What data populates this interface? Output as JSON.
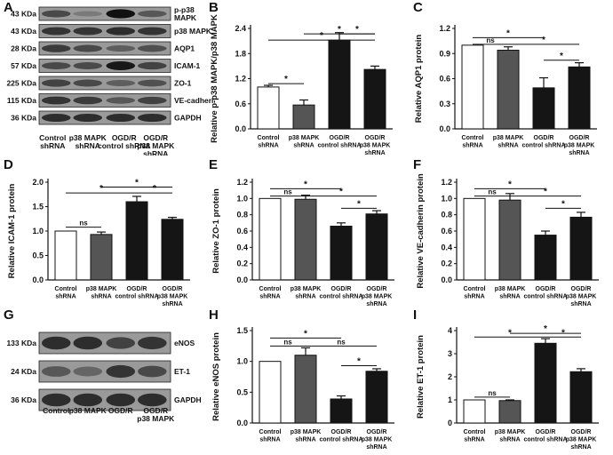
{
  "panels": {
    "A": {
      "letter": "A",
      "kda": [
        "43 KDa",
        "43 KDa",
        "28 KDa",
        "57 KDa",
        "225 KDa",
        "115 KDa",
        "36 KDa"
      ],
      "proteins": [
        "p-p38 MAPK",
        "p38 MAPK",
        "AQP1",
        "ICAM-1",
        "ZO-1",
        "VE-cadherin",
        "GAPDH"
      ],
      "groups": [
        [
          "Control",
          "shRNA"
        ],
        [
          "p38 MAPK",
          "shRNA"
        ],
        [
          "OGD/R",
          "control shRNA"
        ],
        [
          "OGD/R",
          "p38 MAPK",
          "shRNA"
        ]
      ]
    },
    "G": {
      "letter": "G",
      "kda": [
        "133 KDa",
        "24 KDa",
        "36 KDa"
      ],
      "proteins": [
        "eNOS",
        "ET-1",
        "GAPDH"
      ],
      "groups": [
        [
          "Control"
        ],
        [
          "p38 MAPK"
        ],
        [
          "OGD/R"
        ],
        [
          "OGD/R",
          "p38 MAPK"
        ]
      ]
    }
  },
  "chart_data": [
    {
      "panel": "B",
      "type": "bar",
      "categories": [
        [
          "Control",
          "shRNA"
        ],
        [
          "p38 MAPK",
          "shRNA"
        ],
        [
          "OGD/R",
          "control shRNA"
        ],
        [
          "OGD/R",
          "p38 MAPK",
          "shRNA"
        ]
      ],
      "values": [
        1.0,
        0.57,
        2.12,
        1.42
      ],
      "errors": [
        0.04,
        0.12,
        0.18,
        0.08
      ],
      "ylabel": "Relative p-p38 MAPK/p38 MAPK",
      "ylim": [
        0,
        2.4
      ],
      "yticks": [
        "0.0",
        "0.6",
        "1.2",
        "1.8",
        "2.4"
      ],
      "colors": [
        "#ffffff",
        "#555555",
        "#151515",
        "#151515"
      ],
      "annotations": [
        {
          "from": 0,
          "to": 1,
          "level": 1.08,
          "text": "*"
        },
        {
          "from": 1,
          "to": 3,
          "level": 2.27,
          "text": "*"
        },
        {
          "from": 0,
          "to": 3,
          "level": 2.12,
          "text": "*"
        },
        {
          "from": 2,
          "to": 3,
          "level": 2.27,
          "text": "*"
        }
      ]
    },
    {
      "panel": "C",
      "type": "bar",
      "categories": [
        [
          "Control",
          "shRNA"
        ],
        [
          "p38 MAPK",
          "shRNA"
        ],
        [
          "OGD/R",
          "control shRNA"
        ],
        [
          "OGD/R",
          "p38 MAPK",
          "shRNA"
        ]
      ],
      "values": [
        1.0,
        0.94,
        0.49,
        0.74
      ],
      "errors": [
        0.0,
        0.04,
        0.12,
        0.05
      ],
      "ylabel": "Relative AQP1 protein",
      "ylim": [
        0,
        1.2
      ],
      "yticks": [
        "0.0",
        "0.3",
        "0.6",
        "0.9",
        "1.2"
      ],
      "colors": [
        "#ffffff",
        "#555555",
        "#151515",
        "#151515"
      ],
      "annotations": [
        {
          "from": 0,
          "to": 2,
          "level": 1.09,
          "text": "*"
        },
        {
          "from": 0,
          "to": 1,
          "level": 1.01,
          "text": "ns"
        },
        {
          "from": 1,
          "to": 3,
          "level": 1.01,
          "text": "*"
        },
        {
          "from": 2,
          "to": 3,
          "level": 0.82,
          "text": "*"
        }
      ]
    },
    {
      "panel": "D",
      "type": "bar",
      "categories": [
        [
          "Control",
          "shRNA"
        ],
        [
          "p38 MAPK",
          "shRNA"
        ],
        [
          "OGD/R",
          "control shRNA"
        ],
        [
          "OGD/R",
          "p38 MAPK",
          "shRNA"
        ]
      ],
      "values": [
        1.0,
        0.93,
        1.6,
        1.24
      ],
      "errors": [
        0.0,
        0.05,
        0.11,
        0.04
      ],
      "ylabel": "Relative ICAM-1 protein",
      "ylim": [
        0,
        2.0
      ],
      "yticks": [
        "0.0",
        "0.5",
        "1.0",
        "1.5",
        "2.0"
      ],
      "colors": [
        "#ffffff",
        "#555555",
        "#151515",
        "#151515"
      ],
      "annotations": [
        {
          "from": 0,
          "to": 1,
          "level": 1.08,
          "text": "ns"
        },
        {
          "from": 1,
          "to": 3,
          "level": 1.9,
          "text": "*"
        },
        {
          "from": 0,
          "to": 2,
          "level": 1.78,
          "text": "*"
        },
        {
          "from": 2,
          "to": 3,
          "level": 1.78,
          "text": "*"
        }
      ]
    },
    {
      "panel": "E",
      "type": "bar",
      "categories": [
        [
          "Control",
          "shRNA"
        ],
        [
          "p38 MAPK",
          "shRNA"
        ],
        [
          "OGD/R",
          "control shRNA"
        ],
        [
          "OGD/R",
          "p38 MAPK",
          "shRNA"
        ]
      ],
      "values": [
        1.0,
        0.99,
        0.66,
        0.81
      ],
      "errors": [
        0.0,
        0.05,
        0.04,
        0.04
      ],
      "ylabel": "Relative ZO-1 protein",
      "ylim": [
        0,
        1.2
      ],
      "yticks": [
        "0.0",
        "0.2",
        "0.4",
        "0.6",
        "0.8",
        "1.0",
        "1.2"
      ],
      "colors": [
        "#ffffff",
        "#555555",
        "#151515",
        "#151515"
      ],
      "annotations": [
        {
          "from": 0,
          "to": 2,
          "level": 1.12,
          "text": "*"
        },
        {
          "from": 0,
          "to": 1,
          "level": 1.03,
          "text": "ns"
        },
        {
          "from": 1,
          "to": 3,
          "level": 1.03,
          "text": "*"
        },
        {
          "from": 2,
          "to": 3,
          "level": 0.88,
          "text": "*"
        }
      ]
    },
    {
      "panel": "F",
      "type": "bar",
      "categories": [
        [
          "Control",
          "shRNA"
        ],
        [
          "p38 MAPK",
          "shRNA"
        ],
        [
          "OGD/R",
          "control shRNA"
        ],
        [
          "OGD/R",
          "p38 MAPK",
          "shRNA"
        ]
      ],
      "values": [
        1.0,
        0.98,
        0.55,
        0.77
      ],
      "errors": [
        0.0,
        0.08,
        0.05,
        0.06
      ],
      "ylabel": "Relative VE-cadherin protein",
      "ylim": [
        0,
        1.2
      ],
      "yticks": [
        "0.0",
        "0.2",
        "0.4",
        "0.6",
        "0.8",
        "1.0",
        "1.2"
      ],
      "colors": [
        "#ffffff",
        "#555555",
        "#151515",
        "#151515"
      ],
      "annotations": [
        {
          "from": 0,
          "to": 2,
          "level": 1.12,
          "text": "*"
        },
        {
          "from": 0,
          "to": 1,
          "level": 1.03,
          "text": "ns"
        },
        {
          "from": 1,
          "to": 3,
          "level": 1.03,
          "text": "*"
        },
        {
          "from": 2,
          "to": 3,
          "level": 0.88,
          "text": "*"
        }
      ]
    },
    {
      "panel": "H",
      "type": "bar",
      "categories": [
        [
          "Control",
          "shRNA"
        ],
        [
          "p38 MAPK",
          "shRNA"
        ],
        [
          "OGD/R",
          "control shRNA"
        ],
        [
          "OGD/R",
          "p38 MAPK",
          "shRNA"
        ]
      ],
      "values": [
        1.0,
        1.1,
        0.39,
        0.84
      ],
      "errors": [
        0.0,
        0.12,
        0.05,
        0.04
      ],
      "ylabel": "Relative eNOS protein",
      "ylim": [
        0,
        1.5
      ],
      "yticks": [
        "0.0",
        "0.5",
        "1.0",
        "1.5"
      ],
      "colors": [
        "#ffffff",
        "#555555",
        "#151515",
        "#151515"
      ],
      "annotations": [
        {
          "from": 0,
          "to": 2,
          "level": 1.38,
          "text": "*"
        },
        {
          "from": 0,
          "to": 1,
          "level": 1.25,
          "text": "ns"
        },
        {
          "from": 1,
          "to": 3,
          "level": 1.25,
          "text": "ns"
        },
        {
          "from": 2,
          "to": 3,
          "level": 0.93,
          "text": "*"
        }
      ]
    },
    {
      "panel": "I",
      "type": "bar",
      "categories": [
        [
          "Control",
          "shRNA"
        ],
        [
          "p38 MAPK",
          "shRNA"
        ],
        [
          "OGD/R",
          "control shRNA"
        ],
        [
          "OGD/R",
          "p38 MAPK",
          "shRNA"
        ]
      ],
      "values": [
        1.0,
        0.97,
        3.45,
        2.22
      ],
      "errors": [
        0.0,
        0.03,
        0.2,
        0.13
      ],
      "ylabel": "Relative ET-1 protein",
      "ylim": [
        0,
        4
      ],
      "yticks": [
        "0",
        "1",
        "2",
        "3",
        "4"
      ],
      "colors": [
        "#ffffff",
        "#555555",
        "#151515",
        "#151515"
      ],
      "annotations": [
        {
          "from": 0,
          "to": 1,
          "level": 1.12,
          "text": "ns"
        },
        {
          "from": 1,
          "to": 3,
          "level": 3.88,
          "text": "*"
        },
        {
          "from": 0,
          "to": 2,
          "level": 3.72,
          "text": "*"
        },
        {
          "from": 2,
          "to": 3,
          "level": 3.72,
          "text": "*"
        }
      ]
    }
  ]
}
